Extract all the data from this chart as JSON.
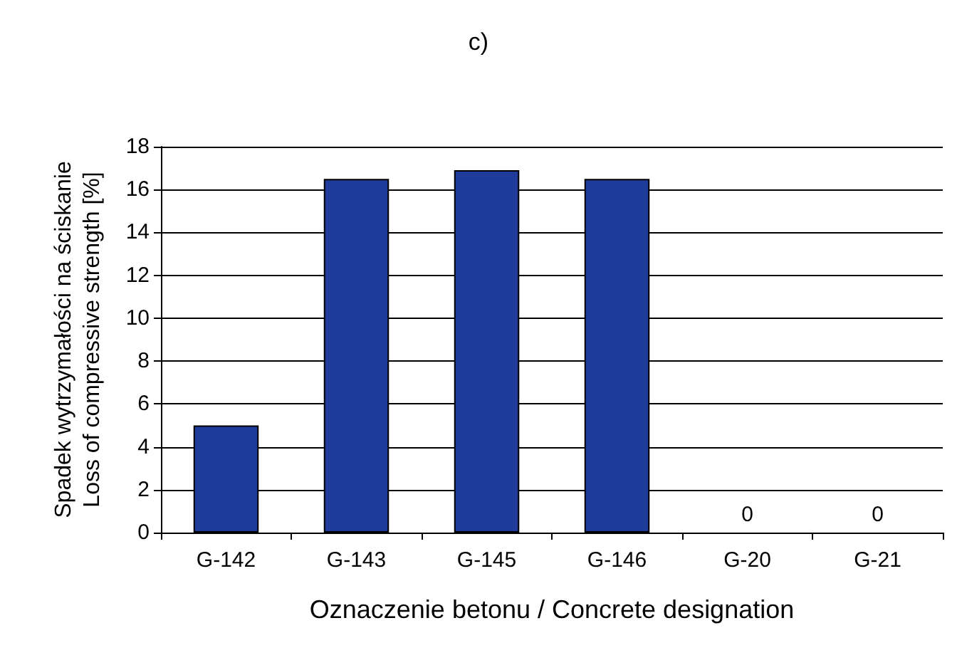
{
  "chart_data": {
    "type": "bar",
    "title": "c)",
    "xlabel": "Oznaczenie betonu / Concrete designation",
    "ylabel": "Spadek wytrzymałości na ściskanie\nLoss of compressive strength [%]",
    "categories": [
      "G-142",
      "G-143",
      "G-145",
      "G-146",
      "G-20",
      "G-21"
    ],
    "values": [
      5.0,
      16.5,
      16.9,
      16.5,
      0,
      0
    ],
    "value_labels": [
      null,
      null,
      null,
      null,
      "0",
      "0"
    ],
    "color": "#1f3c9a",
    "ylim": [
      0,
      18
    ],
    "yticks": [
      0,
      2,
      4,
      6,
      8,
      10,
      12,
      14,
      16,
      18
    ],
    "grid": "y"
  }
}
